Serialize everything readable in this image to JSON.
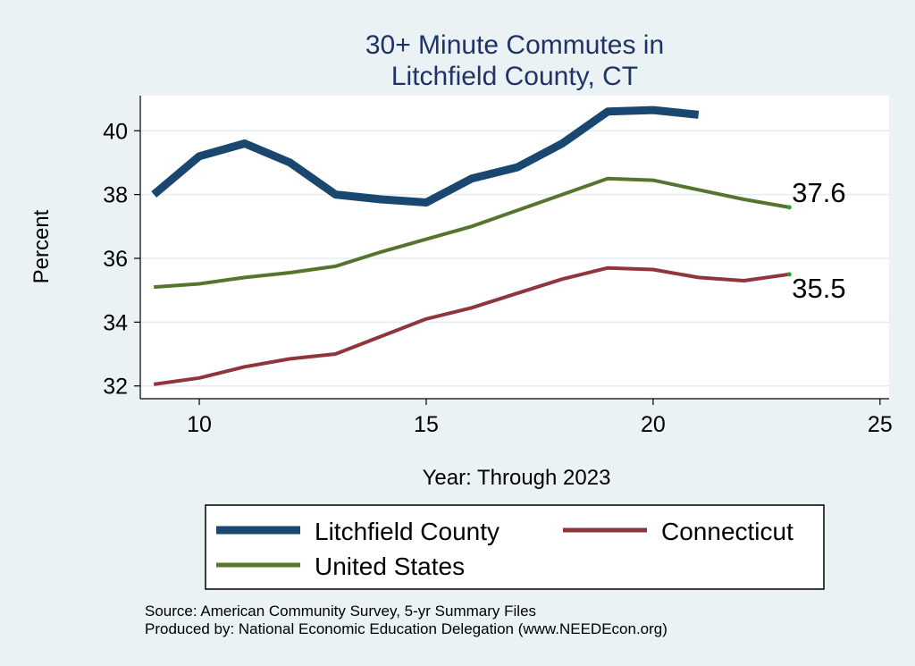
{
  "chart_data": {
    "type": "line",
    "title_lines": [
      "30+ Minute Commutes in",
      "Litchfield County, CT"
    ],
    "xlabel": "Year: Through 2023",
    "ylabel": "Percent",
    "xlim": [
      8.7,
      25.2
    ],
    "ylim": [
      31.6,
      41.1
    ],
    "x_ticks": [
      10,
      15,
      20,
      25
    ],
    "y_ticks": [
      32,
      34,
      36,
      38,
      40
    ],
    "grid": true,
    "colors": {
      "background": "#eaf2f3",
      "plot_background": "#ffffff",
      "grid": "#e4eef0",
      "text": "#000000",
      "title": "#1f3366"
    },
    "series": [
      {
        "name": "Litchfield County",
        "color": "#1a476f",
        "width": 9,
        "x": [
          9,
          10,
          11,
          12,
          13,
          14,
          15,
          16,
          17,
          18,
          19,
          20,
          21
        ],
        "values": [
          38.0,
          39.2,
          39.6,
          39.0,
          38.0,
          37.85,
          37.75,
          38.5,
          38.85,
          39.6,
          40.6,
          40.65,
          40.5
        ]
      },
      {
        "name": "United States",
        "color": "#55752f",
        "width": 4,
        "x": [
          9,
          10,
          11,
          12,
          13,
          14,
          15,
          16,
          17,
          18,
          19,
          20,
          21,
          22,
          23
        ],
        "values": [
          35.1,
          35.2,
          35.4,
          35.55,
          35.75,
          36.2,
          36.6,
          37.0,
          37.5,
          38.0,
          38.5,
          38.45,
          38.15,
          37.85,
          37.6
        ]
      },
      {
        "name": "Connecticut",
        "color": "#90353b",
        "width": 4,
        "x": [
          9,
          10,
          11,
          12,
          13,
          14,
          15,
          16,
          17,
          18,
          19,
          20,
          21,
          22,
          23
        ],
        "values": [
          32.05,
          32.25,
          32.6,
          32.85,
          33.0,
          33.55,
          34.1,
          34.45,
          34.9,
          35.35,
          35.7,
          35.65,
          35.4,
          35.3,
          35.5
        ]
      }
    ],
    "annotations": [
      {
        "series": "United States",
        "text": "37.6"
      },
      {
        "series": "Connecticut",
        "text": "35.5"
      }
    ],
    "legend": {
      "placement": "bottom",
      "items": [
        "Litchfield County",
        "Connecticut",
        "United States"
      ]
    },
    "notes": [
      "Source: American Community Survey, 5-yr Summary Files",
      "Produced by: National Economic Education Delegation (www.NEEDEcon.org)"
    ]
  }
}
